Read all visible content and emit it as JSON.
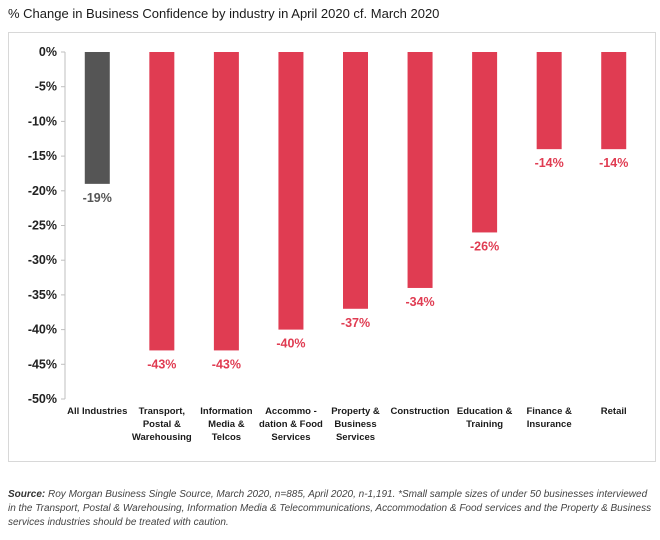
{
  "chart_data": {
    "type": "bar",
    "title": "% Change in Business Confidence by industry in April 2020 cf. March 2020",
    "categories": [
      [
        "All Industries"
      ],
      [
        "Transport,",
        "Postal &",
        "Warehousing"
      ],
      [
        "Information",
        "Media &",
        "Telcos"
      ],
      [
        "Accommo -",
        "dation & Food",
        "Services"
      ],
      [
        "Property &",
        "Business",
        "Services"
      ],
      [
        "Construction"
      ],
      [
        "Education &",
        "Training"
      ],
      [
        "Finance &",
        "Insurance"
      ],
      [
        "Retail"
      ]
    ],
    "values": [
      -19,
      -43,
      -43,
      -40,
      -37,
      -34,
      -26,
      -14,
      -14
    ],
    "data_labels": [
      "-19%",
      "-43%",
      "-43%",
      "-40%",
      "-37%",
      "-34%",
      "-26%",
      "-14%",
      "-14%"
    ],
    "bar_colors": [
      "#555555",
      "#e03c52",
      "#e03c52",
      "#e03c52",
      "#e03c52",
      "#e03c52",
      "#e03c52",
      "#e03c52",
      "#e03c52"
    ],
    "label_colors": [
      "#555555",
      "#e03c52",
      "#e03c52",
      "#e03c52",
      "#e03c52",
      "#e03c52",
      "#e03c52",
      "#e03c52",
      "#e03c52"
    ],
    "y_ticks": [
      0,
      -5,
      -10,
      -15,
      -20,
      -25,
      -30,
      -35,
      -40,
      -45,
      -50
    ],
    "y_tick_labels": [
      "0%",
      "-5%",
      "-10%",
      "-15%",
      "-20%",
      "-25%",
      "-30%",
      "-35%",
      "-40%",
      "-45%",
      "-50%"
    ],
    "ylim": [
      -50,
      0
    ],
    "grid": false
  },
  "footnote": {
    "source_label": "Source:",
    "text": " Roy Morgan Business Single Source, March 2020, n=885, April 2020, n-1,191. *Small sample sizes of under 50 businesses interviewed in the Transport, Postal & Warehousing, Information Media & Telecommunications, Accommodation & Food services and the Property & Business services industries should be treated with caution."
  }
}
